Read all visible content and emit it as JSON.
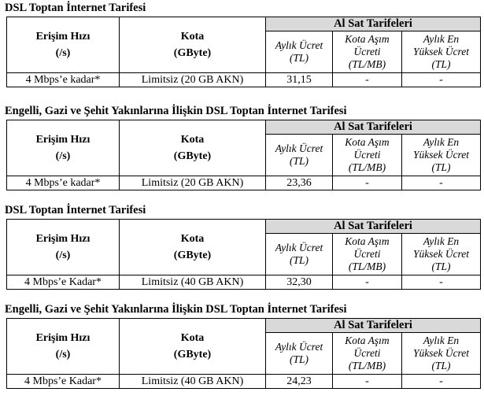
{
  "tables": [
    {
      "title": "DSL Toptan İnternet Tarifesi",
      "col_speed": [
        "Erişim Hızı",
        "(/s)"
      ],
      "col_quota": [
        "Kota",
        "(GByte)"
      ],
      "group": "Al Sat Tarifeleri",
      "sub_monthly": [
        "Aylık Ücret",
        "(TL)"
      ],
      "sub_overage": [
        "Kota Aşım",
        "Ücreti",
        "(TL/MB)"
      ],
      "sub_max": [
        "Aylık En",
        "Yüksek Ücret",
        "(TL)"
      ],
      "row": {
        "speed": "4 Mbps’e kadar*",
        "quota": "Limitsiz (20 GB AKN)",
        "monthly": "31,15",
        "overage": "-",
        "max": "-"
      }
    },
    {
      "title": "Engelli, Gazi ve Şehit Yakınlarına İlişkin DSL Toptan İnternet Tarifesi",
      "col_speed": [
        "Erişim Hızı",
        "(/s)"
      ],
      "col_quota": [
        "Kota",
        "(GByte)"
      ],
      "group": "Al Sat Tarifeleri",
      "sub_monthly": [
        "Aylık Ücret",
        "(TL)"
      ],
      "sub_overage": [
        "Kota Aşım",
        "Ücreti",
        "(TL/MB)"
      ],
      "sub_max": [
        "Aylık En",
        "Yüksek Ücret",
        "(TL)"
      ],
      "row": {
        "speed": "4 Mbps’e kadar*",
        "quota": "Limitsiz (20 GB AKN)",
        "monthly": "23,36",
        "overage": "-",
        "max": "-"
      }
    },
    {
      "title": "DSL Toptan İnternet Tarifesi",
      "col_speed": [
        "Erişim Hızı",
        "(/s)"
      ],
      "col_quota": [
        "Kota",
        "(GByte)"
      ],
      "group": "Al Sat Tarifeleri",
      "sub_monthly": [
        "Aylık Ücret",
        "(TL)"
      ],
      "sub_overage": [
        "Kota Aşım",
        "Ücreti",
        "(TL/MB)"
      ],
      "sub_max": [
        "Aylık En",
        "Yüksek Ücret",
        "(TL)"
      ],
      "row": {
        "speed": "4 Mbps’e Kadar*",
        "quota": "Limitsiz (40 GB AKN)",
        "monthly": "32,30",
        "overage": "-",
        "max": "-"
      }
    },
    {
      "title": "Engelli, Gazi ve Şehit Yakınlarına İlişkin DSL Toptan İnternet Tarifesi",
      "col_speed": [
        "Erişim Hızı",
        "(/s)"
      ],
      "col_quota": [
        "Kota",
        "(GByte)"
      ],
      "group": "Al Sat Tarifeleri",
      "sub_monthly": [
        "Aylık Ücret",
        "(TL)"
      ],
      "sub_overage": [
        "Kota Aşım",
        "Ücreti",
        "(TL/MB)"
      ],
      "sub_max": [
        "Aylık En",
        "Yüksek Ücret",
        "(TL)"
      ],
      "row": {
        "speed": "4 Mbps’e Kadar*",
        "quota": "Limitsiz (40 GB AKN)",
        "monthly": "24,23",
        "overage": "-",
        "max": "-"
      }
    }
  ]
}
